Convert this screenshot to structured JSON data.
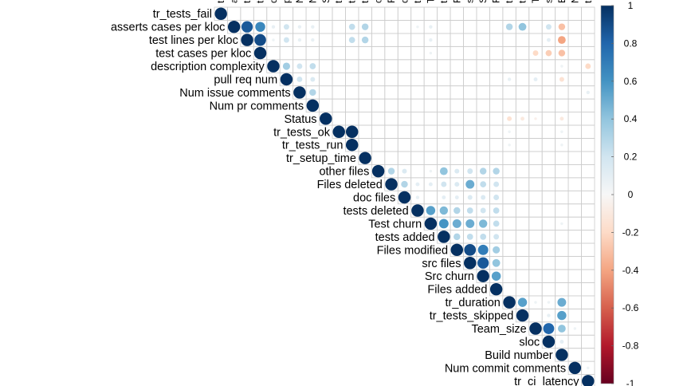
{
  "chart_data": {
    "type": "heatmap",
    "variables": [
      "tr_tests_fail",
      "asserts cases per kloc",
      "test lines per kloc",
      "test cases per kloc",
      "description complexity",
      "pull req num",
      "Num issue comments",
      "Num pr comments",
      "Status",
      "tr_tests_ok",
      "tr_tests_run",
      "tr_setup_time",
      "other files",
      "Files deleted",
      "doc files",
      "tests deleted",
      "Test churn",
      "tests added",
      "Files modified",
      "src files",
      "Src churn",
      "Files added",
      "tr_duration",
      "tr_tests_skipped",
      "Team_size",
      "sloc",
      "Build number",
      "Num commit comments",
      "tr_ci_latency"
    ],
    "colorbar": {
      "ticks": [
        "1",
        "0.8",
        "0.6",
        "0.4",
        "0.2",
        "0",
        "-0.2",
        "-0.4",
        "-0.6",
        "-0.8",
        "-1"
      ],
      "range": [
        -1,
        1
      ],
      "colors": {
        "pos_strong": "#053061",
        "pos_mid": "#4393c3",
        "neutral": "#f7f7f7",
        "neg_mid": "#d6604d",
        "neg_strong": "#67001f"
      }
    },
    "correlations": [
      [
        1,
        2,
        0.85
      ],
      [
        1,
        3,
        0.65
      ],
      [
        1,
        4,
        0.08
      ],
      [
        1,
        5,
        0.2
      ],
      [
        1,
        6,
        0.08
      ],
      [
        1,
        7,
        0.08
      ],
      [
        1,
        10,
        0.25
      ],
      [
        1,
        11,
        0.3
      ],
      [
        1,
        15,
        0.05
      ],
      [
        1,
        16,
        0.08
      ],
      [
        1,
        22,
        0.3
      ],
      [
        1,
        23,
        0.4
      ],
      [
        1,
        25,
        0.2
      ],
      [
        1,
        26,
        -0.3
      ],
      [
        2,
        3,
        0.9
      ],
      [
        2,
        4,
        0.05
      ],
      [
        2,
        5,
        0.2
      ],
      [
        2,
        6,
        0.08
      ],
      [
        2,
        7,
        0.08
      ],
      [
        2,
        10,
        0.25
      ],
      [
        2,
        11,
        0.3
      ],
      [
        2,
        16,
        0.08
      ],
      [
        2,
        25,
        0.1
      ],
      [
        2,
        26,
        -0.4
      ],
      [
        3,
        16,
        0.05
      ],
      [
        3,
        24,
        -0.2
      ],
      [
        3,
        25,
        -0.25
      ],
      [
        3,
        26,
        -0.3
      ],
      [
        4,
        5,
        0.35
      ],
      [
        4,
        6,
        0.2
      ],
      [
        4,
        7,
        0.25
      ],
      [
        4,
        26,
        0.05
      ],
      [
        4,
        28,
        -0.2
      ],
      [
        5,
        6,
        0.2
      ],
      [
        5,
        7,
        0.15
      ],
      [
        5,
        22,
        0.08
      ],
      [
        5,
        24,
        0.1
      ],
      [
        5,
        26,
        -0.15
      ],
      [
        6,
        7,
        0.3
      ],
      [
        6,
        28,
        0.08
      ],
      [
        8,
        22,
        -0.15
      ],
      [
        8,
        23,
        -0.1
      ],
      [
        8,
        24,
        -0.05
      ],
      [
        8,
        26,
        -0.1
      ],
      [
        9,
        10,
        1.0
      ],
      [
        9,
        22,
        0.05
      ],
      [
        9,
        26,
        0.05
      ],
      [
        10,
        22,
        0.05
      ],
      [
        10,
        26,
        0.05
      ],
      [
        12,
        13,
        0.3
      ],
      [
        12,
        14,
        0.15
      ],
      [
        12,
        16,
        0.05
      ],
      [
        12,
        17,
        0.4
      ],
      [
        12,
        18,
        0.15
      ],
      [
        12,
        19,
        0.2
      ],
      [
        12,
        20,
        0.3
      ],
      [
        12,
        21,
        0.3
      ],
      [
        13,
        14,
        0.3
      ],
      [
        13,
        15,
        0.1
      ],
      [
        13,
        16,
        0.1
      ],
      [
        13,
        17,
        0.2
      ],
      [
        13,
        18,
        0.15
      ],
      [
        13,
        19,
        0.5
      ],
      [
        13,
        20,
        0.25
      ],
      [
        13,
        21,
        0.2
      ],
      [
        14,
        15,
        0.08
      ],
      [
        14,
        17,
        0.1
      ],
      [
        14,
        18,
        0.1
      ],
      [
        14,
        19,
        0.15
      ],
      [
        14,
        20,
        0.15
      ],
      [
        14,
        21,
        0.2
      ],
      [
        15,
        16,
        0.55
      ],
      [
        15,
        17,
        0.45
      ],
      [
        15,
        18,
        0.3
      ],
      [
        15,
        19,
        0.25
      ],
      [
        15,
        20,
        0.2
      ],
      [
        15,
        21,
        0.25
      ],
      [
        16,
        17,
        0.6
      ],
      [
        16,
        18,
        0.5
      ],
      [
        16,
        19,
        0.5
      ],
      [
        16,
        20,
        0.45
      ],
      [
        16,
        21,
        0.25
      ],
      [
        16,
        26,
        0.05
      ],
      [
        17,
        18,
        0.3
      ],
      [
        17,
        19,
        0.25
      ],
      [
        17,
        20,
        0.25
      ],
      [
        17,
        21,
        0.2
      ],
      [
        18,
        19,
        0.9
      ],
      [
        18,
        20,
        0.7
      ],
      [
        18,
        21,
        0.35
      ],
      [
        19,
        20,
        0.85
      ],
      [
        19,
        21,
        0.4
      ],
      [
        20,
        21,
        0.55
      ],
      [
        22,
        23,
        0.55
      ],
      [
        22,
        24,
        0.05
      ],
      [
        22,
        25,
        0.05
      ],
      [
        22,
        26,
        0.5
      ],
      [
        23,
        25,
        0.08
      ],
      [
        23,
        26,
        0.55
      ],
      [
        24,
        25,
        0.8
      ],
      [
        24,
        26,
        0.4
      ],
      [
        24,
        27,
        0.05
      ],
      [
        25,
        26,
        0.1
      ],
      [
        27,
        28,
        0.05
      ]
    ]
  }
}
